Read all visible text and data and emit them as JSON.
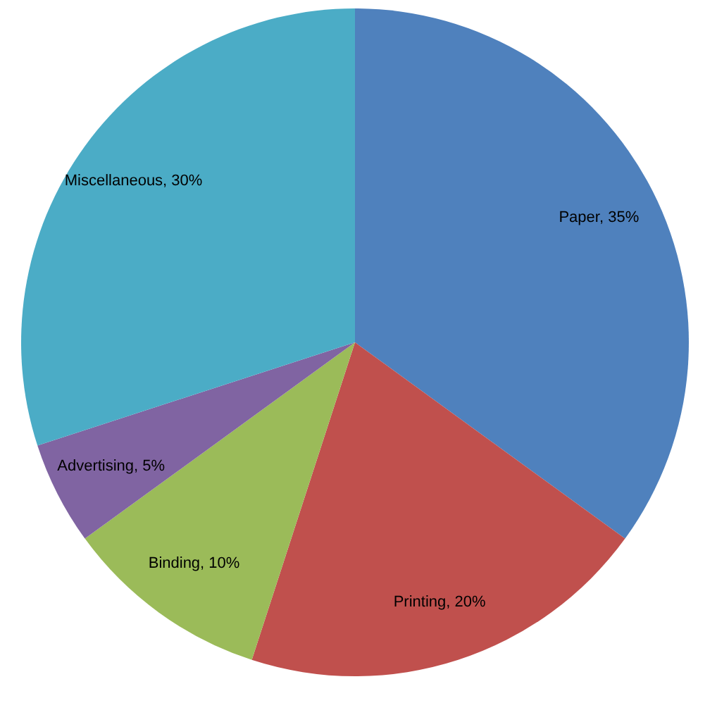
{
  "chart_data": {
    "type": "pie",
    "categories": [
      "Paper",
      "Printing",
      "Binding",
      "Advertising",
      "Miscellaneous"
    ],
    "values": [
      35,
      20,
      10,
      5,
      30
    ],
    "value_labels": [
      "35%",
      "20%",
      "10%",
      "5%",
      "30%"
    ],
    "colors": [
      "#4f81bd",
      "#c0504d",
      "#9bbb59",
      "#8064a2",
      "#4bacc6"
    ]
  }
}
